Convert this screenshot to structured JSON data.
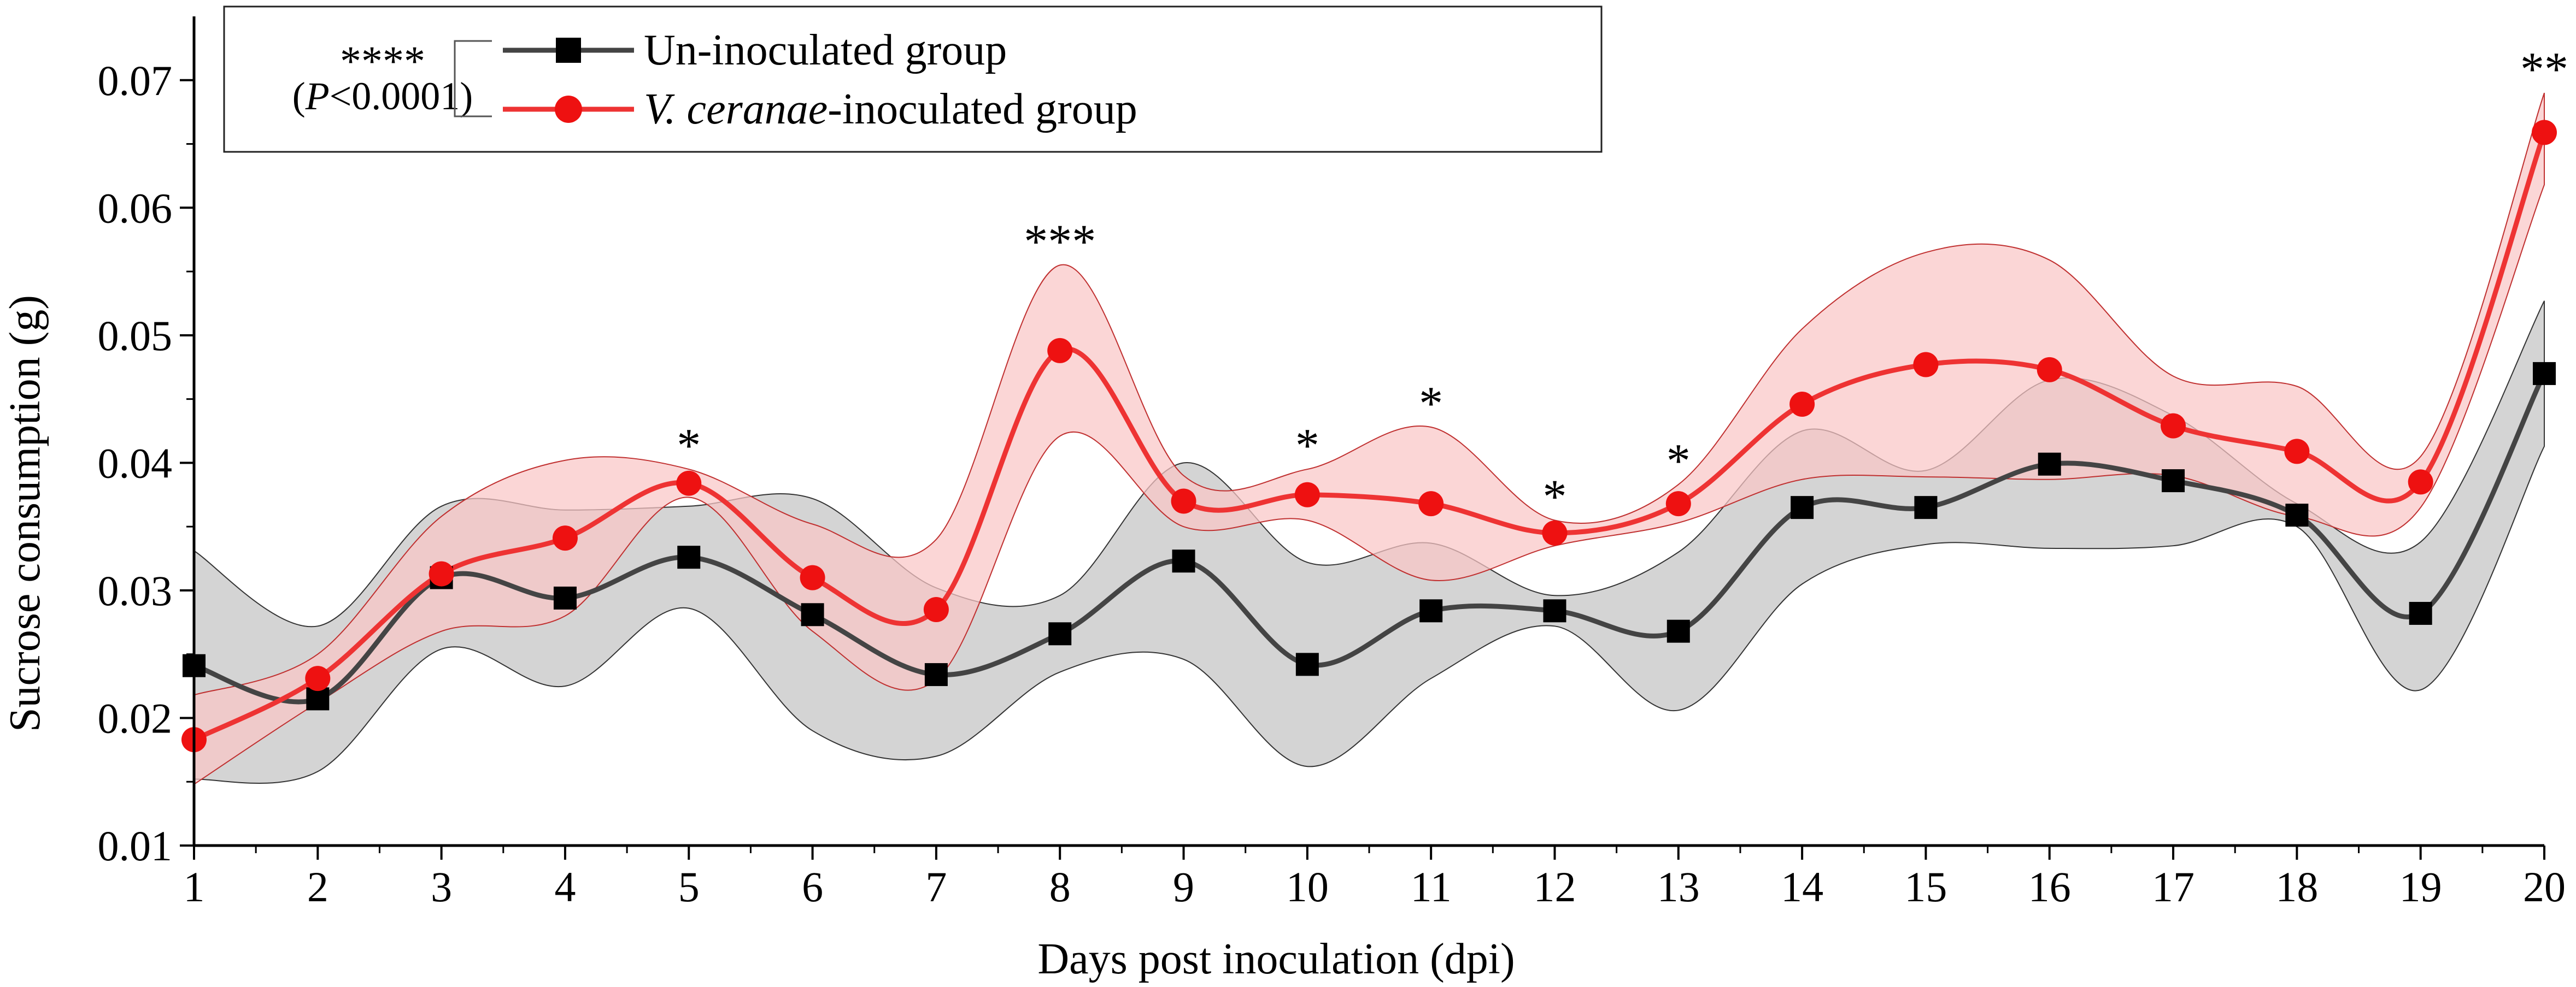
{
  "chart_data": {
    "type": "line",
    "title": "",
    "xlabel": "Days post inoculation (dpi)",
    "ylabel": "Sucrose consumption (g)",
    "x": [
      1,
      2,
      3,
      4,
      5,
      6,
      7,
      8,
      9,
      10,
      11,
      12,
      13,
      14,
      15,
      16,
      17,
      18,
      19,
      20
    ],
    "xticks": [
      "1",
      "2",
      "3",
      "4",
      "5",
      "6",
      "7",
      "8",
      "9",
      "10",
      "11",
      "12",
      "13",
      "14",
      "15",
      "16",
      "17",
      "18",
      "19",
      "20"
    ],
    "xlim": [
      1,
      20
    ],
    "ylim": [
      0.01,
      0.075
    ],
    "yticks": [
      "0.01",
      "0.02",
      "0.03",
      "0.04",
      "0.05",
      "0.06",
      "0.07"
    ],
    "series": [
      {
        "name": "Un-inoculated group",
        "color": "#000000",
        "line_color": "#444444",
        "band_color": "#d4d4d4",
        "marker": "square",
        "values": [
          0.0241,
          0.0215,
          0.031,
          0.0294,
          0.0326,
          0.0281,
          0.0234,
          0.0266,
          0.0323,
          0.0242,
          0.0284,
          0.0284,
          0.0268,
          0.0365,
          0.0365,
          0.0399,
          0.0386,
          0.0359,
          0.0282,
          0.047
        ],
        "upper": [
          0.0331,
          0.0272,
          0.0366,
          0.0363,
          0.0366,
          0.0372,
          0.0302,
          0.0296,
          0.04,
          0.0322,
          0.0337,
          0.0296,
          0.033,
          0.0425,
          0.0394,
          0.0465,
          0.0437,
          0.0368,
          0.0338,
          0.0527
        ],
        "lower": [
          0.0152,
          0.0158,
          0.0254,
          0.0225,
          0.0286,
          0.019,
          0.017,
          0.0236,
          0.0246,
          0.0162,
          0.0231,
          0.0272,
          0.0206,
          0.0305,
          0.0336,
          0.0333,
          0.0335,
          0.035,
          0.0222,
          0.0413
        ]
      },
      {
        "name": "V. ceranae-inoculated group",
        "color": "#ee1111",
        "line_color": "#ee3333",
        "band_color": "#f9c6c6",
        "marker": "circle",
        "values": [
          0.0183,
          0.0231,
          0.0313,
          0.0341,
          0.0384,
          0.031,
          0.0285,
          0.0488,
          0.037,
          0.0375,
          0.0368,
          0.0345,
          0.0368,
          0.0446,
          0.0477,
          0.0473,
          0.0429,
          0.0409,
          0.0385,
          0.0659
        ],
        "upper": [
          0.0218,
          0.025,
          0.0358,
          0.0402,
          0.0395,
          0.0352,
          0.034,
          0.0555,
          0.039,
          0.0395,
          0.0428,
          0.0355,
          0.0383,
          0.0505,
          0.0565,
          0.0559,
          0.0468,
          0.046,
          0.0405,
          0.069
        ],
        "lower": [
          0.0148,
          0.0212,
          0.0268,
          0.028,
          0.0373,
          0.0268,
          0.023,
          0.0421,
          0.035,
          0.0355,
          0.0308,
          0.0335,
          0.0353,
          0.0387,
          0.0389,
          0.0387,
          0.039,
          0.0358,
          0.0365,
          0.0618
        ]
      }
    ],
    "annotations": [
      {
        "x": 5,
        "text": "*"
      },
      {
        "x": 8,
        "text": "***"
      },
      {
        "x": 10,
        "text": "*"
      },
      {
        "x": 11,
        "text": "*"
      },
      {
        "x": 12,
        "text": "*"
      },
      {
        "x": 13,
        "text": "*"
      },
      {
        "x": 20,
        "text": "**"
      }
    ],
    "legend": {
      "position": "top-left",
      "significance": "****",
      "p_value_letter": "P",
      "p_value_rest": "<0.0001",
      "labels": [
        {
          "text": "Un-inoculated group",
          "italic_prefix": ""
        },
        {
          "italic_prefix": "V. ceranae",
          "text": "-inoculated group"
        }
      ]
    }
  }
}
